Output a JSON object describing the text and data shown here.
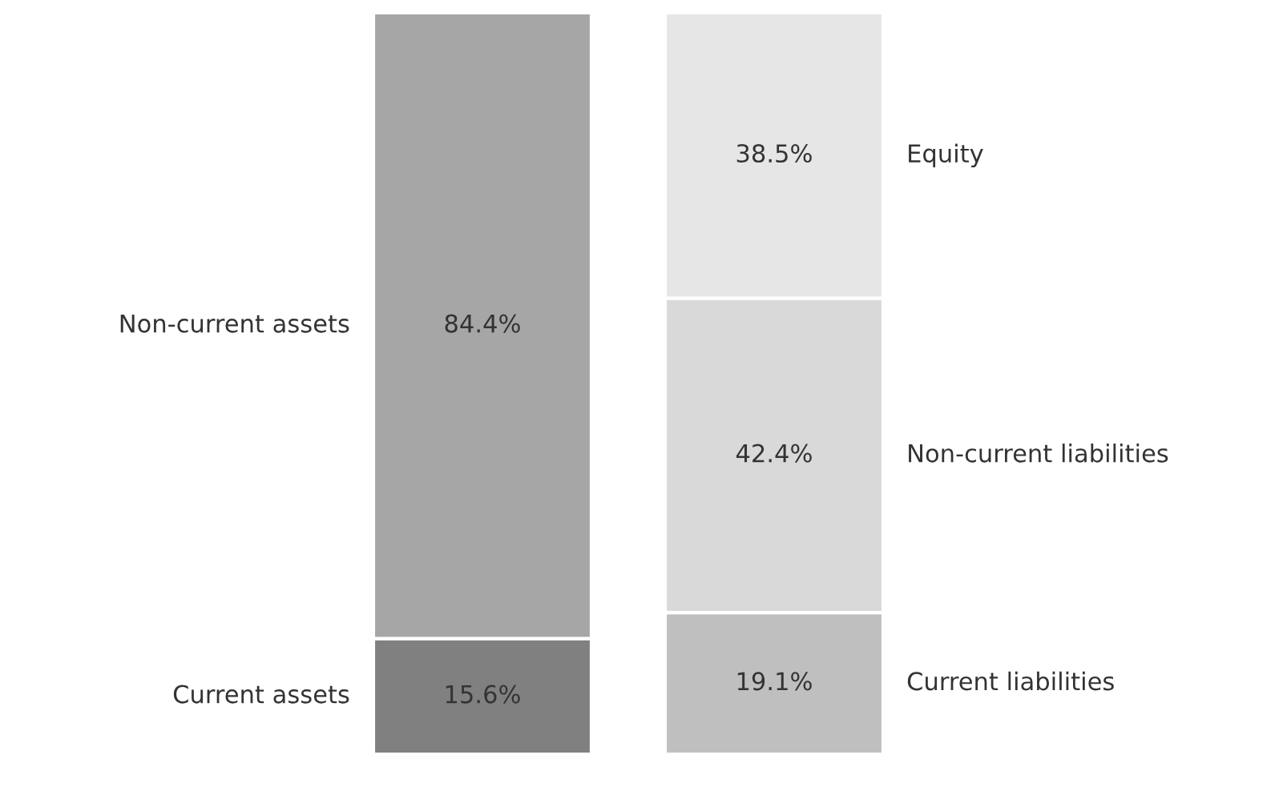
{
  "chart_data": {
    "type": "bar",
    "stacked": true,
    "categories": [
      null,
      null
    ],
    "data_labels": false,
    "series": [
      {
        "name": "Current assets",
        "color": "#808080",
        "values": [
          15.6,
          null
        ],
        "value_labels": [
          "15.6%",
          null
        ]
      },
      {
        "name": "Non-current assets",
        "color": "#a6a6a6",
        "values": [
          84.4,
          null
        ],
        "value_labels": [
          "84.4%",
          null
        ]
      },
      {
        "name": "Current liabilities",
        "color": "#bfbfbf",
        "values": [
          null,
          19.1
        ],
        "value_labels": [
          null,
          "19.1%"
        ]
      },
      {
        "name": "Non-current liabilities",
        "color": "#d9d9d9",
        "values": [
          null,
          42.4
        ],
        "value_labels": [
          null,
          "42.4%"
        ]
      },
      {
        "name": "Equity",
        "color": "#e6e6e6",
        "values": [
          null,
          38.5
        ],
        "value_labels": [
          null,
          "38.5%"
        ]
      }
    ]
  }
}
